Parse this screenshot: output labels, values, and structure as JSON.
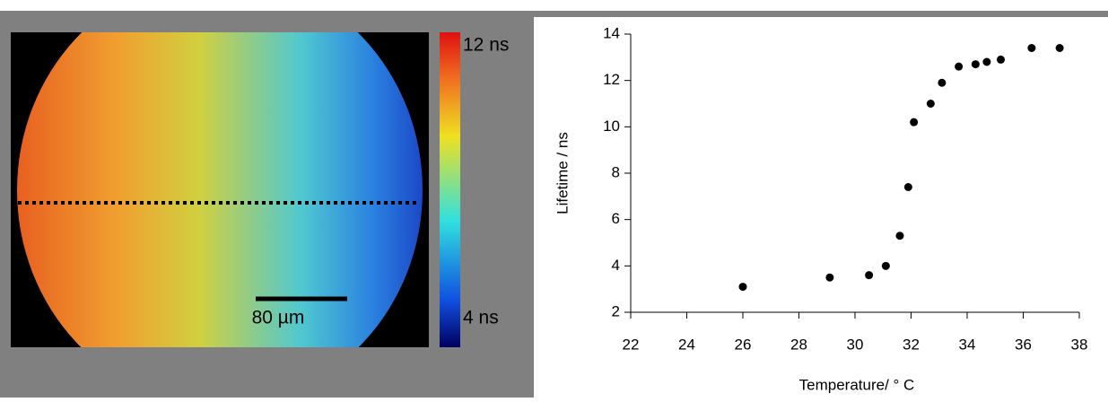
{
  "image": {
    "colorbar_max_label": "12 ns",
    "colorbar_min_label": "4 ns",
    "scale_bar_label": "80 µm"
  },
  "chart_data": {
    "type": "scatter",
    "x_label": "Temperature/ ° C",
    "y_label": "Lifetime / ns",
    "color": "#000000",
    "x": [
      26.0,
      29.1,
      30.5,
      31.1,
      31.6,
      31.9,
      32.1,
      32.7,
      33.1,
      33.7,
      34.3,
      34.7,
      35.2,
      36.3,
      37.3
    ],
    "values": [
      3.1,
      3.5,
      3.6,
      4.0,
      5.3,
      7.4,
      10.2,
      11.0,
      11.9,
      12.6,
      12.7,
      12.8,
      12.9,
      13.4,
      13.4
    ],
    "xlim": [
      22,
      38
    ],
    "xticks": [
      22,
      24,
      26,
      28,
      30,
      32,
      34,
      36,
      38
    ],
    "ylim": [
      2,
      14
    ],
    "yticks": [
      2,
      4,
      6,
      8,
      10,
      12,
      14
    ],
    "grid": false
  }
}
